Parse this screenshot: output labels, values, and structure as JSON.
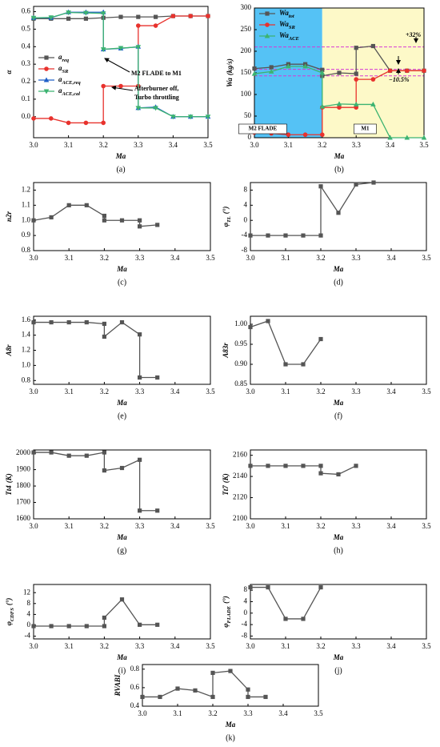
{
  "chart_data": [
    {
      "type": "line",
      "caption": "(a)",
      "x_label": "Ma",
      "y_label": "α",
      "xlim": [
        3,
        3.5
      ],
      "xticks": [
        {
          "value": 3,
          "label": "3.0"
        },
        3.1,
        3.2,
        3.3,
        3.4,
        3.5
      ],
      "ylim": [
        -0.12,
        0.63
      ],
      "yticks": [
        {
          "value": 0,
          "label": "0.0"
        },
        0.1,
        0.2,
        0.3,
        0.4,
        0.5,
        0.6
      ],
      "series": [
        {
          "name": "a",
          "name_sub": "req",
          "color": "#555555",
          "marker": "square",
          "x": [
            3,
            3.05,
            3.1,
            3.15,
            3.2,
            3.25,
            3.3,
            3.35,
            3.4,
            3.45,
            3.5
          ],
          "values": [
            0.56,
            0.56,
            0.56,
            0.56,
            0.565,
            0.57,
            0.57,
            0.57,
            0.575,
            0.575,
            0.575
          ]
        },
        {
          "name": "a",
          "name_sub": "SR",
          "color": "#e8322d",
          "marker": "circle",
          "x": [
            3,
            3.05,
            3.1,
            3.15,
            3.2,
            3.2,
            3.25,
            3.3,
            3.3,
            3.35,
            3.4,
            3.45,
            3.5
          ],
          "values": [
            -0.01,
            -0.01,
            -0.035,
            -0.035,
            -0.035,
            0.175,
            0.175,
            0.175,
            0.52,
            0.52,
            0.575,
            0.575,
            0.575
          ]
        },
        {
          "name": "a",
          "name_sub": "ACE,req",
          "color": "#1f5fc8",
          "marker": "triangle-up",
          "x": [
            3,
            3.05,
            3.1,
            3.15,
            3.2,
            3.2,
            3.25,
            3.3,
            3.3,
            3.35,
            3.4,
            3.45,
            3.5
          ],
          "values": [
            0.565,
            0.565,
            0.597,
            0.597,
            0.597,
            0.385,
            0.39,
            0.4,
            0.05,
            0.055,
            0,
            0,
            0
          ]
        },
        {
          "name": "a",
          "name_sub": "ACE,cal",
          "color": "#3cb371",
          "marker": "triangle-down",
          "x": [
            3,
            3.05,
            3.1,
            3.15,
            3.2,
            3.2,
            3.25,
            3.3,
            3.3,
            3.35,
            3.4,
            3.45,
            3.5
          ],
          "values": [
            0.565,
            0.567,
            0.595,
            0.593,
            0.59,
            0.385,
            0.392,
            0.398,
            0.05,
            0.05,
            0,
            0,
            0
          ]
        }
      ],
      "annotations": [
        "M2 FLADE to M1",
        "Afterburner off,",
        "Turbo throttling"
      ]
    },
    {
      "type": "line",
      "caption": "(b)",
      "x_label": "Ma",
      "y_label": "Wa",
      "y_label_unit": "(kg/s)",
      "xlim": [
        3,
        3.5
      ],
      "xticks": [
        {
          "value": 3,
          "label": "3.0"
        },
        3.1,
        3.2,
        3.3,
        3.4,
        3.5
      ],
      "ylim": [
        0,
        300
      ],
      "yticks": [
        0,
        50,
        100,
        150,
        200,
        250,
        300
      ],
      "regions": [
        {
          "label": "M2 FLADE",
          "x": [
            3,
            3.2
          ],
          "color": "#55c2f5"
        },
        {
          "label": "M1",
          "x": [
            3.2,
            3.5
          ],
          "color": "#fdf9c8"
        }
      ],
      "ref_lines": [
        210,
        158,
        143
      ],
      "ref_color": "#d63ad6",
      "series": [
        {
          "name": "Wa",
          "name_sub": "tot",
          "color": "#555555",
          "marker": "square",
          "x": [
            3,
            3.05,
            3.1,
            3.15,
            3.2,
            3.2,
            3.25,
            3.3,
            3.3,
            3.35,
            3.4,
            3.45,
            3.5
          ],
          "values": [
            160,
            163,
            170,
            170,
            157,
            143,
            150,
            148,
            208,
            212,
            155,
            155,
            155
          ]
        },
        {
          "name": "Wa",
          "name_sub": "SR",
          "color": "#e8322d",
          "marker": "circle",
          "x": [
            3,
            3.05,
            3.1,
            3.15,
            3.2,
            3.2,
            3.25,
            3.3,
            3.3,
            3.35,
            3.4,
            3.45,
            3.5
          ],
          "values": [
            12,
            10,
            7,
            7,
            7,
            70,
            70,
            70,
            135,
            135,
            155,
            155,
            155
          ]
        },
        {
          "name": "Wa",
          "name_sub": "ACE",
          "color": "#3cb371",
          "marker": "triangle-up",
          "x": [
            3,
            3.05,
            3.1,
            3.15,
            3.2,
            3.2,
            3.25,
            3.3,
            3.35,
            3.4,
            3.45,
            3.5
          ],
          "values": [
            148,
            153,
            165,
            165,
            150,
            72,
            78,
            77,
            77,
            0,
            0,
            0
          ]
        }
      ],
      "annotations": [
        "+32%",
        "−10.5%"
      ]
    },
    {
      "type": "line",
      "caption": "(c)",
      "x_label": "Ma",
      "y_label": "n2r",
      "xlim": [
        3,
        3.5
      ],
      "xticks": [
        {
          "value": 3,
          "label": "3.0"
        },
        3.1,
        3.2,
        3.3,
        3.4,
        3.5
      ],
      "ylim": [
        0.8,
        1.25
      ],
      "yticks": [
        0.8,
        0.9,
        {
          "value": 1,
          "label": "1.0"
        },
        1.1,
        1.2
      ],
      "color": "#555555",
      "x": [
        3,
        3.05,
        3.1,
        3.15,
        3.2,
        3.2,
        3.25,
        3.3,
        3.3,
        3.35
      ],
      "values": [
        1.0,
        1.02,
        1.1,
        1.1,
        1.03,
        1.0,
        1.0,
        1.0,
        0.96,
        0.97
      ]
    },
    {
      "type": "line",
      "caption": "(d)",
      "x_label": "Ma",
      "y_label": "φ",
      "y_label_sub": "TL",
      "y_label_unit": "(°)",
      "xlim": [
        3,
        3.5
      ],
      "xticks": [
        {
          "value": 3,
          "label": "3.0"
        },
        3.1,
        3.2,
        3.3,
        3.4,
        3.5
      ],
      "ylim": [
        -8,
        10
      ],
      "yticks": [
        -8,
        -4,
        0,
        4,
        8
      ],
      "color": "#555555",
      "x": [
        3,
        3.05,
        3.1,
        3.15,
        3.2,
        3.2,
        3.25,
        3.3,
        3.35
      ],
      "values": [
        -4,
        -4,
        -4,
        -4,
        -4,
        9,
        2,
        9.5,
        10
      ]
    },
    {
      "type": "line",
      "caption": "(e)",
      "x_label": "Ma",
      "y_label": "A8r",
      "xlim": [
        3,
        3.5
      ],
      "xticks": [
        {
          "value": 3,
          "label": "3.0"
        },
        3.1,
        3.2,
        3.3,
        3.4,
        3.5
      ],
      "ylim": [
        0.75,
        1.65
      ],
      "yticks": [
        0.8,
        {
          "value": 1,
          "label": "1.0"
        },
        1.2,
        1.4,
        1.6
      ],
      "color": "#555555",
      "x": [
        3,
        3.05,
        3.1,
        3.15,
        3.2,
        3.2,
        3.25,
        3.3,
        3.3,
        3.35
      ],
      "values": [
        1.57,
        1.57,
        1.57,
        1.57,
        1.55,
        1.38,
        1.57,
        1.41,
        0.84,
        0.84
      ]
    },
    {
      "type": "line",
      "caption": "(f)",
      "x_label": "Ma",
      "y_label": "A83r",
      "xlim": [
        3,
        3.5
      ],
      "xticks": [
        {
          "value": 3,
          "label": "3.0"
        },
        3.1,
        3.2,
        3.3,
        3.4,
        3.5
      ],
      "ylim": [
        0.85,
        1.02
      ],
      "yticks": [
        0.85,
        {
          "value": 0.9,
          "label": "0.90"
        },
        0.95,
        {
          "value": 1,
          "label": "1.00"
        }
      ],
      "color": "#555555",
      "x": [
        3,
        3.05,
        3.1,
        3.15,
        3.2
      ],
      "values": [
        0.993,
        1.008,
        0.9,
        0.9,
        0.963
      ]
    },
    {
      "type": "line",
      "caption": "(g)",
      "x_label": "Ma",
      "y_label": "Tt4",
      "y_label_unit": "(K)",
      "xlim": [
        3,
        3.5
      ],
      "xticks": [
        {
          "value": 3,
          "label": "3.0"
        },
        3.1,
        3.2,
        3.3,
        3.4,
        3.5
      ],
      "ylim": [
        1600,
        2020
      ],
      "yticks": [
        1600,
        1700,
        1800,
        1900,
        2000
      ],
      "color": "#555555",
      "x": [
        3,
        3.05,
        3.1,
        3.15,
        3.2,
        3.2,
        3.25,
        3.3,
        3.3,
        3.35
      ],
      "values": [
        2005,
        2005,
        1985,
        1985,
        2005,
        1895,
        1910,
        1960,
        1650,
        1650
      ]
    },
    {
      "type": "line",
      "caption": "(h)",
      "x_label": "Ma",
      "y_label": "Tt7",
      "y_label_unit": "(K)",
      "xlim": [
        3,
        3.5
      ],
      "xticks": [
        {
          "value": 3,
          "label": "3.0"
        },
        3.1,
        3.2,
        3.3,
        3.4,
        3.5
      ],
      "ylim": [
        2100,
        2165
      ],
      "yticks": [
        2100,
        2120,
        2140,
        2160
      ],
      "color": "#555555",
      "x": [
        3,
        3.05,
        3.1,
        3.15,
        3.2,
        3.2,
        3.25,
        3.3
      ],
      "values": [
        2150,
        2150,
        2150,
        2150,
        2150,
        2143,
        2142,
        2150
      ]
    },
    {
      "type": "line",
      "caption": "(i)",
      "x_label": "Ma",
      "y_label": "φ",
      "y_label_sub": "CDFS",
      "y_label_unit": "(°)",
      "xlim": [
        3,
        3.5
      ],
      "xticks": [
        {
          "value": 3,
          "label": "3.0"
        },
        3.1,
        3.2,
        3.3,
        3.4,
        3.5
      ],
      "ylim": [
        -5,
        15
      ],
      "yticks": [
        -4,
        0,
        4,
        8,
        12
      ],
      "color": "#555555",
      "x": [
        3,
        3.05,
        3.1,
        3.15,
        3.2,
        3.2,
        3.25,
        3.3,
        3.35
      ],
      "values": [
        -0.3,
        -0.3,
        -0.3,
        -0.3,
        -0.3,
        2.8,
        9.5,
        0.2,
        0.2
      ]
    },
    {
      "type": "line",
      "caption": "(j)",
      "x_label": "Ma",
      "y_label": "φ",
      "y_label_sub": "FLADE",
      "y_label_unit": "(°)",
      "xlim": [
        3,
        3.5
      ],
      "xticks": [
        {
          "value": 3,
          "label": "3.0"
        },
        3.1,
        3.2,
        3.3,
        3.4,
        3.5
      ],
      "ylim": [
        -9,
        10
      ],
      "yticks": [
        -8,
        -4,
        0,
        4,
        8
      ],
      "color": "#555555",
      "x": [
        3,
        3.05,
        3.1,
        3.15,
        3.2
      ],
      "values": [
        9,
        9,
        -2,
        -2,
        9
      ]
    },
    {
      "type": "line",
      "caption": "(k)",
      "x_label": "Ma",
      "y_label": "RVABI",
      "xlim": [
        3,
        3.5
      ],
      "xticks": [
        {
          "value": 3,
          "label": "3.0"
        },
        3.1,
        3.2,
        3.3,
        3.4,
        3.5
      ],
      "ylim": [
        0.4,
        0.85
      ],
      "yticks": [
        0.4,
        0.6,
        0.8
      ],
      "color": "#555555",
      "x": [
        3,
        3.05,
        3.1,
        3.15,
        3.2,
        3.2,
        3.25,
        3.3,
        3.3,
        3.35
      ],
      "values": [
        0.5,
        0.5,
        0.59,
        0.57,
        0.5,
        0.76,
        0.78,
        0.58,
        0.5,
        0.5
      ]
    }
  ]
}
